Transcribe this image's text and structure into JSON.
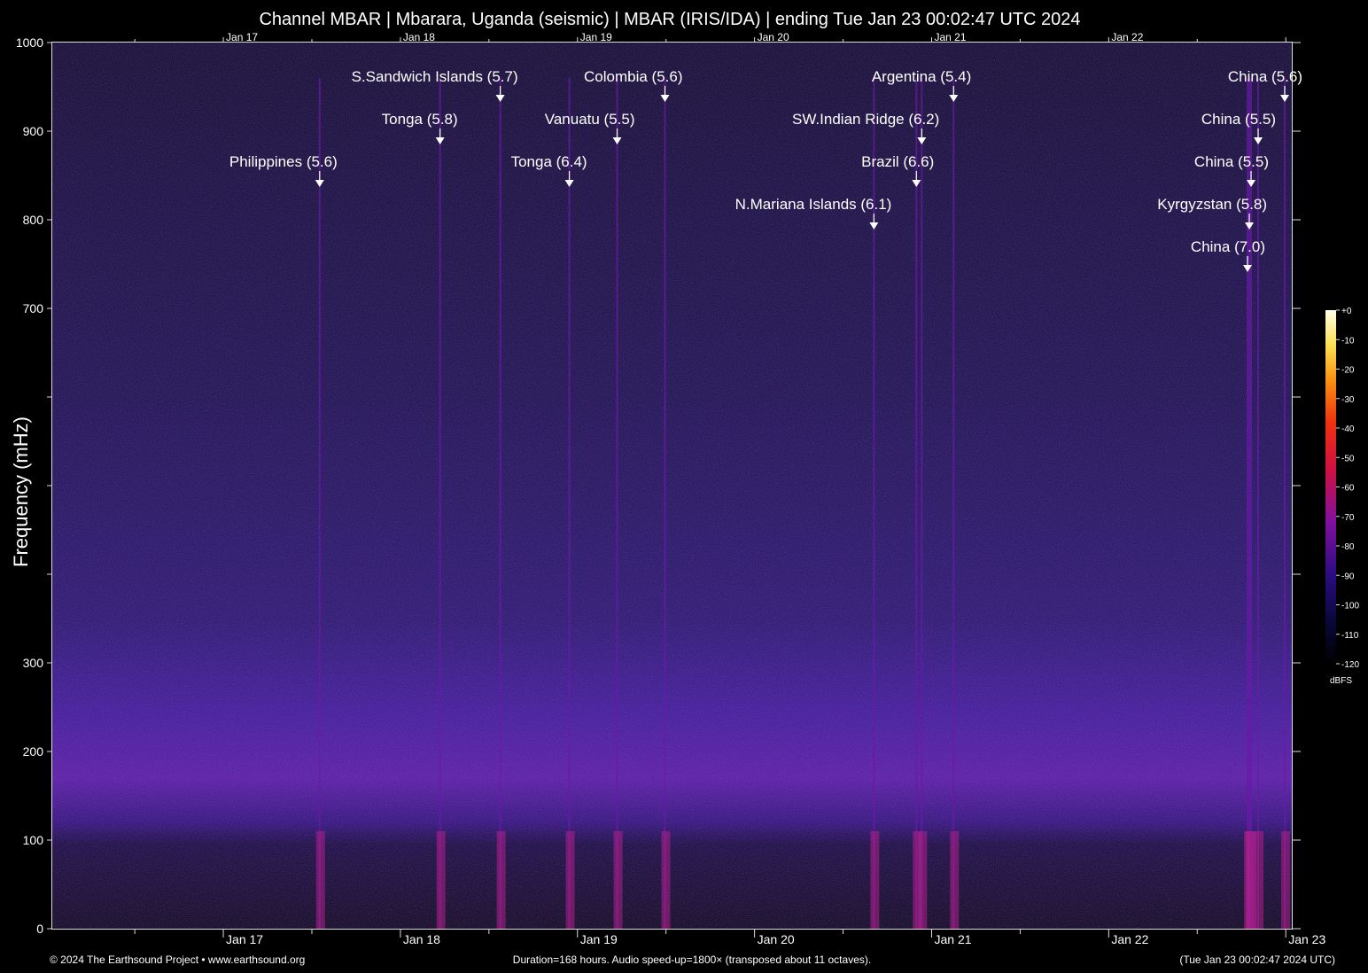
{
  "chart_data": {
    "type": "heatmap",
    "title": "Channel MBAR | Mbarara, Uganda (seismic) | MBAR (IRIS/IDA) | ending Tue Jan 23 00:02:47 UTC 2024",
    "ylabel": "Frequency (mHz)",
    "ylim": [
      0,
      1000
    ],
    "y_ticks": [
      0,
      100,
      200,
      300,
      400,
      500,
      600,
      700,
      800,
      900,
      1000
    ],
    "y_tick_labels": [
      "0",
      "100",
      "200",
      "300",
      "",
      "",
      "",
      "700",
      "800",
      "900",
      "1000"
    ],
    "x_range_days": [
      "Jan 16 00:02:47",
      "Jan 23 00:02:47"
    ],
    "x_day_labels": [
      "Jan 17",
      "Jan 18",
      "Jan 19",
      "Jan 20",
      "Jan 21",
      "Jan 22",
      "Jan 23"
    ],
    "colorbar": {
      "unit": "dBFS",
      "range": [
        -120,
        0
      ],
      "ticks": [
        "+0",
        "-10",
        "-20",
        "-30",
        "-40",
        "-50",
        "-60",
        "-70",
        "-80",
        "-90",
        "-100",
        "-110",
        "-120"
      ]
    },
    "events": [
      {
        "label": "Philippines (5.6)",
        "day": 1.51
      },
      {
        "label": "Tonga (5.8)",
        "day": 2.19
      },
      {
        "label": "S.Sandwich Islands (5.7)",
        "day": 2.53
      },
      {
        "label": "Tonga (6.4)",
        "day": 2.92
      },
      {
        "label": "Vanuatu (5.5)",
        "day": 3.19
      },
      {
        "label": "Colombia (5.6)",
        "day": 3.46
      },
      {
        "label": "N.Mariana Islands (6.1)",
        "day": 4.64
      },
      {
        "label": "Brazil (6.6)",
        "day": 4.88
      },
      {
        "label": "SW.Indian Ridge (6.2)",
        "day": 4.91
      },
      {
        "label": "Argentina (5.4)",
        "day": 5.09
      },
      {
        "label": "China (7.0)",
        "day": 6.75
      },
      {
        "label": "Kyrgyzstan (5.8)",
        "day": 6.76
      },
      {
        "label": "China (5.5)",
        "day": 6.77
      },
      {
        "label": "China (5.5)",
        "day": 6.81
      },
      {
        "label": "China (5.6)",
        "day": 6.96
      }
    ]
  },
  "footer": {
    "copyright": "© 2024 The Earthsound Project • www.earthsound.org",
    "duration": "Duration=168 hours. Audio speed-up=1800× (transposed about 11 octaves).",
    "timestamp": "(Tue Jan 23 00:02:47 2024 UTC)"
  }
}
